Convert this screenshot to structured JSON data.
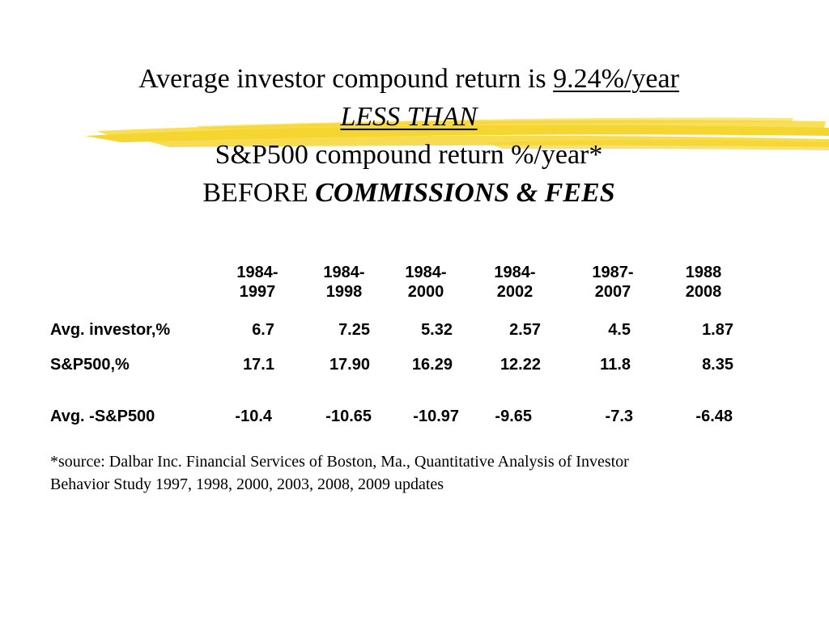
{
  "title": {
    "line1_prefix": "Average investor compound return is ",
    "line1_value": "9.24%/year",
    "line2": "LESS THAN",
    "line3": "S&P500 compound return %/year*",
    "line4_prefix": "BEFORE ",
    "line4_emphasis": "COMMISSIONS & FEES"
  },
  "table": {
    "headers": [
      {
        "top": "1984-",
        "bottom": "1997"
      },
      {
        "top": "1984-",
        "bottom": "1998"
      },
      {
        "top": "1984-",
        "bottom": "2000"
      },
      {
        "top": "1984-",
        "bottom": "2002"
      },
      {
        "top": "1987-",
        "bottom": "2007"
      },
      {
        "top": "1988",
        "bottom": "2008"
      }
    ],
    "rows": [
      {
        "label": "Avg. investor,%",
        "values": [
          "6.7",
          "7.25",
          "5.32",
          "2.57",
          "4.5",
          "1.87"
        ]
      },
      {
        "label": "S&P500,%",
        "values": [
          "17.1",
          "17.90",
          "16.29",
          "12.22",
          "11.8",
          "8.35"
        ]
      },
      {
        "label": "Avg. -S&P500",
        "values": [
          "-10.4",
          "-10.65",
          "-10.97",
          "-9.65",
          "-7.3",
          "-6.48"
        ]
      }
    ]
  },
  "source": {
    "line1": "*source: Dalbar Inc. Financial Services of Boston, Ma., Quantitative Analysis of Investor",
    "line2": "Behavior Study 1997, 1998, 2000, 2003, 2008, 2009 updates"
  },
  "colors": {
    "swoosh": "#f5d21e",
    "text": "#000000",
    "background": "#ffffff"
  }
}
